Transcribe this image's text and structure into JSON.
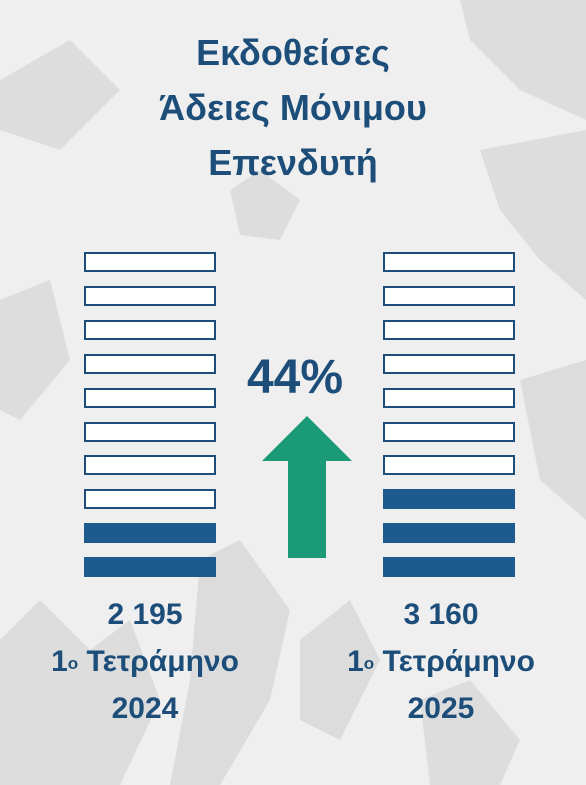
{
  "title_lines": [
    "Εκδοθείσες",
    "Άδειες Μόνιμου",
    "Επενδυτή"
  ],
  "change_percent": "44%",
  "colors": {
    "text": "#1d4e7a",
    "filled_bar": "#1d5a8e",
    "arrow": "#1b9a78",
    "background": "#efefef"
  },
  "chart_data": {
    "type": "bar",
    "categories": [
      "1ο Τετράμηνο 2024",
      "1ο Τετράμηνο 2025"
    ],
    "values": [
      2195,
      3160
    ],
    "value_labels": [
      "2 195",
      "3 160"
    ],
    "change": "44%",
    "stack_total_blocks": 10,
    "filled_blocks": [
      2,
      3
    ]
  },
  "left": {
    "value": "2 195",
    "period_prefix": "1",
    "period_sup": "ο",
    "period_word": "Τετράμηνο",
    "year": "2024"
  },
  "right": {
    "value": "3 160",
    "period_prefix": "1",
    "period_sup": "ο",
    "period_word": "Τετράμηνο",
    "year": "2025"
  }
}
